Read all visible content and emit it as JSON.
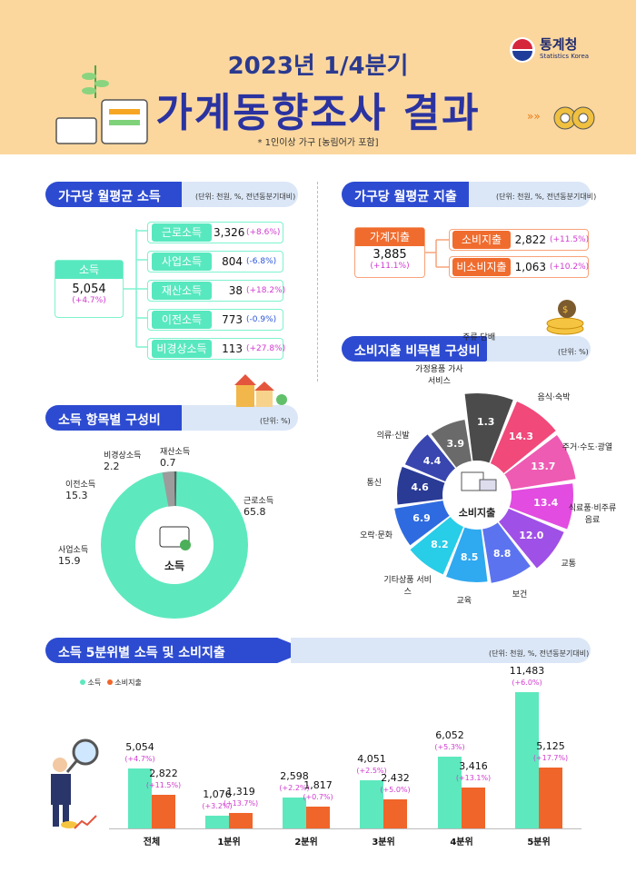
{
  "header": {
    "year_quarter": "2023년 1/4분기",
    "title": "가계동향조사 결과",
    "note": "* 1인이상 가구 [농림어가 포함]",
    "logo_name": "통계청",
    "logo_sub": "Statistics Korea"
  },
  "income_section": {
    "title": "가구당 월평균 소득",
    "unit": "(단위: 천원, %, 전년동분기대비)",
    "total": {
      "label": "소득",
      "value": "5,054",
      "change": "(+4.7%)"
    },
    "items": [
      {
        "label": "근로소득",
        "value": "3,326",
        "change": "(+8.6%)",
        "sign": "pos"
      },
      {
        "label": "사업소득",
        "value": "804",
        "change": "(-6.8%)",
        "sign": "neg"
      },
      {
        "label": "재산소득",
        "value": "38",
        "change": "(+18.2%)",
        "sign": "pos"
      },
      {
        "label": "이전소득",
        "value": "773",
        "change": "(-0.9%)",
        "sign": "neg"
      },
      {
        "label": "비경상소득",
        "value": "113",
        "change": "(+27.8%)",
        "sign": "pos"
      }
    ]
  },
  "spend_section": {
    "title": "가구당 월평균 지출",
    "unit": "(단위: 천원, %, 전년동분기대비)",
    "total": {
      "label": "가계지출",
      "value": "3,885",
      "change": "(+11.1%)"
    },
    "items": [
      {
        "label": "소비지출",
        "value": "2,822",
        "change": "(+11.5%)"
      },
      {
        "label": "비소비지출",
        "value": "1,063",
        "change": "(+10.2%)"
      }
    ]
  },
  "income_comp": {
    "title": "소득 항목별 구성비",
    "unit": "(단위: %)",
    "center_label": "소득",
    "labels": [
      {
        "name": "비경상소득",
        "value": "2.2"
      },
      {
        "name": "재산소득",
        "value": "0.7"
      },
      {
        "name": "근로소득",
        "value": "65.8"
      },
      {
        "name": "이전소득",
        "value": "15.3"
      },
      {
        "name": "사업소득",
        "value": "15.9"
      }
    ]
  },
  "consumption_comp": {
    "title": "소비지출 비목별 구성비",
    "unit": "(단위: %)",
    "center_label": "소비지출",
    "categories": [
      {
        "name": "주류·담배",
        "value": "1.3"
      },
      {
        "name": "음식·숙박",
        "value": "14.3"
      },
      {
        "name": "주거·수도·광열",
        "value": "13.7"
      },
      {
        "name": "식료품·비주류음료",
        "value": "13.4"
      },
      {
        "name": "교통",
        "value": "12.0"
      },
      {
        "name": "보건",
        "value": "8.8"
      },
      {
        "name": "교육",
        "value": "8.5"
      },
      {
        "name": "기타상품 서비스",
        "value": "8.2"
      },
      {
        "name": "오락·문화",
        "value": "6.9"
      },
      {
        "name": "통신",
        "value": "4.6"
      },
      {
        "name": "의류·신발",
        "value": "4.4"
      },
      {
        "name": "가정용품 가사서비스",
        "value": "3.9"
      }
    ]
  },
  "quintile": {
    "title": "소득 5분위별 소득 및 소비지출",
    "unit": "(단위: 천원, %, 전년동분기대비)",
    "legend": {
      "income": "소득",
      "spend": "소비지출"
    }
  },
  "chart_data": {
    "type": "bar",
    "categories": [
      "전체",
      "1분위",
      "2분위",
      "3분위",
      "4분위",
      "5분위"
    ],
    "series": [
      {
        "name": "소득",
        "color": "#5ee8be",
        "values": [
          5054,
          1076,
          2598,
          4051,
          6052,
          11483
        ],
        "labels": [
          "5,054",
          "1,076",
          "2,598",
          "4,051",
          "6,052",
          "11,483"
        ],
        "changes": [
          "(+4.7%)",
          "(+3.2%)",
          "(+2.2%)",
          "(+2.5%)",
          "(+5.3%)",
          "(+6.0%)"
        ]
      },
      {
        "name": "소비지출",
        "color": "#f0652a",
        "values": [
          2822,
          1319,
          1817,
          2432,
          3416,
          5125
        ],
        "labels": [
          "2,822",
          "1,319",
          "1,817",
          "2,432",
          "3,416",
          "5,125"
        ],
        "changes": [
          "(+11.5%)",
          "(+13.7%)",
          "(+0.7%)",
          "(+5.0%)",
          "(+13.1%)",
          "(+17.7%)"
        ]
      }
    ]
  }
}
